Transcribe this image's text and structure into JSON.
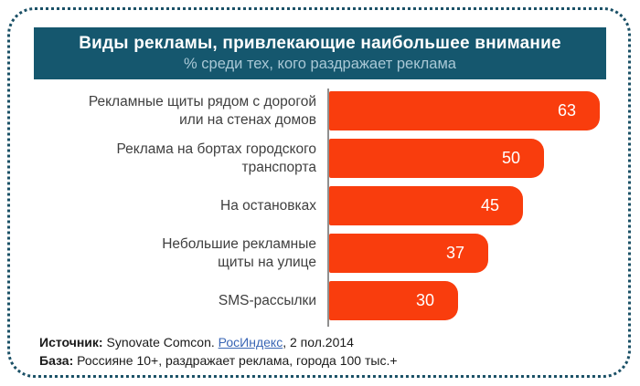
{
  "header": {
    "title": "Виды рекламы, привлекающие наибольшее внимание",
    "subtitle": "% среди тех, кого раздражает реклама"
  },
  "chart_data": {
    "type": "bar",
    "orientation": "horizontal",
    "title": "Виды рекламы, привлекающие наибольшее внимание",
    "subtitle": "% среди тех, кого раздражает реклама",
    "unit": "percent",
    "xlim": [
      0,
      65
    ],
    "grid": false,
    "legend": "none",
    "bar_color": "#f93d0d",
    "value_label_color": "#ffffff",
    "categories": [
      "Рекламные щиты рядом с дорогой\nили на стенах домов",
      "Реклама на бортах городского\nтранспорта",
      "На остановках",
      "Небольшие рекламные\nщиты на улице",
      "SMS-рассылки"
    ],
    "values": [
      63,
      50,
      45,
      37,
      30
    ]
  },
  "footer": {
    "source_label": "Источник:",
    "source_text": " Synovate Comcon. ",
    "source_link": "РосИндекс",
    "source_suffix": ", 2 пол.2014",
    "base_label": "База:",
    "base_text": " Россияне 10+, раздражает реклама, города 100 тыс.+"
  },
  "colors": {
    "header_bg": "#15576e",
    "border_dots": "#1a5066",
    "bar": "#f93d0d",
    "axis": "#8f8f8f",
    "label_text": "#3f3f3f",
    "link": "#3a66b5"
  }
}
